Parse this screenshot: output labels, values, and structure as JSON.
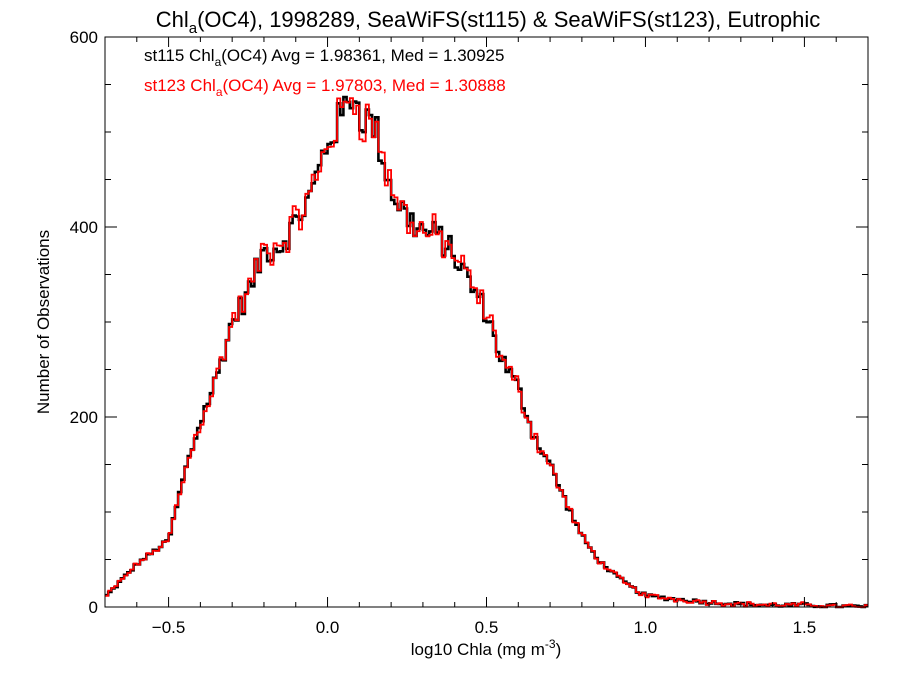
{
  "chart_data": {
    "type": "line",
    "title": {
      "prefix": "Chl",
      "sub": "a",
      "rest": "(OC4), 1998289, SeaWiFS(st115) & SeaWiFS(st123), Eutrophic"
    },
    "xlabel": {
      "main": "log10 Chla (mg m",
      "sup": "-3",
      "close": ")"
    },
    "ylabel": "Number of Observations",
    "xlim": [
      -0.7,
      1.7
    ],
    "ylim": [
      0,
      600
    ],
    "xticks": [
      -0.5,
      0.0,
      0.5,
      1.0,
      1.5
    ],
    "xtick_labels": [
      "−0.5",
      "0.0",
      "0.5",
      "1.0",
      "1.5"
    ],
    "yticks": [
      0,
      200,
      400,
      600
    ],
    "ytick_labels": [
      "0",
      "200",
      "400",
      "600"
    ],
    "grid": false,
    "legend_position": "top-left",
    "series": [
      {
        "name": "st115",
        "color": "#000000",
        "legend": {
          "prefix": "st115 Chl",
          "sub": "a",
          "rest": "(OC4) Avg = 1.98361, Med = 1.30925"
        }
      },
      {
        "name": "st123",
        "color": "#ff0000",
        "legend": {
          "prefix": "st123 Chl",
          "sub": "a",
          "rest": "(OC4) Avg = 1.97803, Med = 1.30888"
        }
      }
    ],
    "curve_anchors": [
      [
        -0.7,
        10
      ],
      [
        -0.6,
        45
      ],
      [
        -0.5,
        70
      ],
      [
        -0.45,
        140
      ],
      [
        -0.4,
        195
      ],
      [
        -0.35,
        240
      ],
      [
        -0.3,
        300
      ],
      [
        -0.25,
        330
      ],
      [
        -0.2,
        375
      ],
      [
        -0.15,
        380
      ],
      [
        -0.1,
        405
      ],
      [
        -0.05,
        435
      ],
      [
        0.0,
        490
      ],
      [
        0.05,
        520
      ],
      [
        0.08,
        545
      ],
      [
        0.1,
        520
      ],
      [
        0.15,
        505
      ],
      [
        0.2,
        440
      ],
      [
        0.25,
        410
      ],
      [
        0.3,
        395
      ],
      [
        0.35,
        390
      ],
      [
        0.4,
        370
      ],
      [
        0.45,
        340
      ],
      [
        0.5,
        310
      ],
      [
        0.55,
        260
      ],
      [
        0.6,
        230
      ],
      [
        0.65,
        180
      ],
      [
        0.7,
        150
      ],
      [
        0.75,
        110
      ],
      [
        0.8,
        75
      ],
      [
        0.85,
        50
      ],
      [
        0.9,
        35
      ],
      [
        0.95,
        22
      ],
      [
        1.0,
        12
      ],
      [
        1.1,
        8
      ],
      [
        1.2,
        5
      ],
      [
        1.3,
        3
      ],
      [
        1.4,
        2
      ],
      [
        1.5,
        2
      ],
      [
        1.6,
        1
      ],
      [
        1.7,
        0
      ]
    ]
  }
}
